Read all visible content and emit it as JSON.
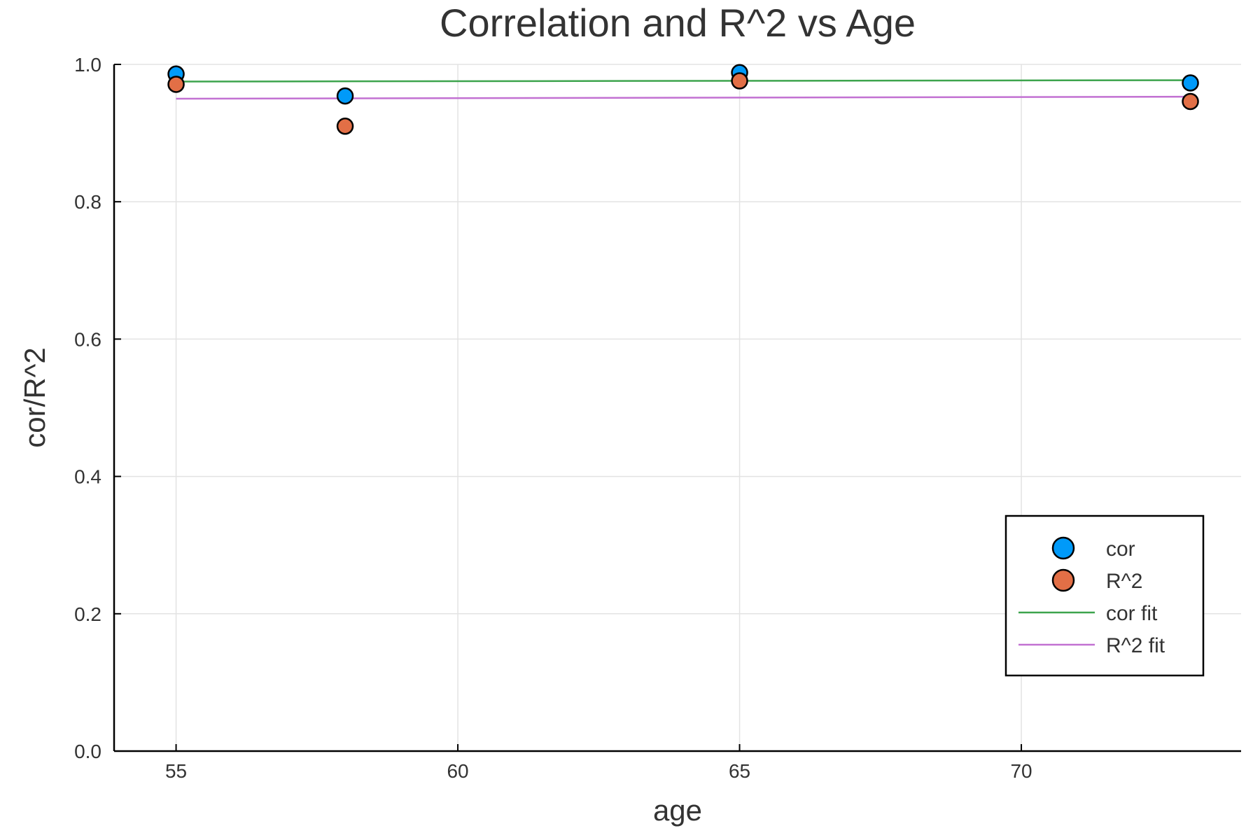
{
  "chart_data": {
    "type": "scatter",
    "title": "Correlation and R^2 vs Age",
    "xlabel": "age",
    "ylabel": "cor/R^2",
    "xlim": [
      53.9,
      73.9
    ],
    "ylim": [
      0.0,
      1.0
    ],
    "xticks": [
      55,
      60,
      65,
      70
    ],
    "xtick_labels": [
      "55",
      "60",
      "65",
      "70"
    ],
    "yticks": [
      0.0,
      0.2,
      0.4,
      0.6,
      0.8,
      1.0
    ],
    "ytick_labels": [
      "0.0",
      "0.2",
      "0.4",
      "0.6",
      "0.8",
      "1.0"
    ],
    "grid": true,
    "legend_position": "bottom-right",
    "series": [
      {
        "name": "cor",
        "kind": "scatter",
        "color": "#009af9",
        "x": [
          55,
          58,
          65,
          73
        ],
        "y": [
          0.986,
          0.954,
          0.988,
          0.973
        ]
      },
      {
        "name": "R^2",
        "kind": "scatter",
        "color": "#e26f46",
        "x": [
          55,
          58,
          65,
          73
        ],
        "y": [
          0.971,
          0.91,
          0.976,
          0.946
        ]
      },
      {
        "name": "cor fit",
        "kind": "line",
        "color": "#3da44d",
        "x": [
          55,
          73
        ],
        "y": [
          0.975,
          0.977
        ]
      },
      {
        "name": "R^2 fit",
        "kind": "line",
        "color": "#c271d2",
        "x": [
          55,
          73
        ],
        "y": [
          0.95,
          0.953
        ]
      }
    ]
  }
}
